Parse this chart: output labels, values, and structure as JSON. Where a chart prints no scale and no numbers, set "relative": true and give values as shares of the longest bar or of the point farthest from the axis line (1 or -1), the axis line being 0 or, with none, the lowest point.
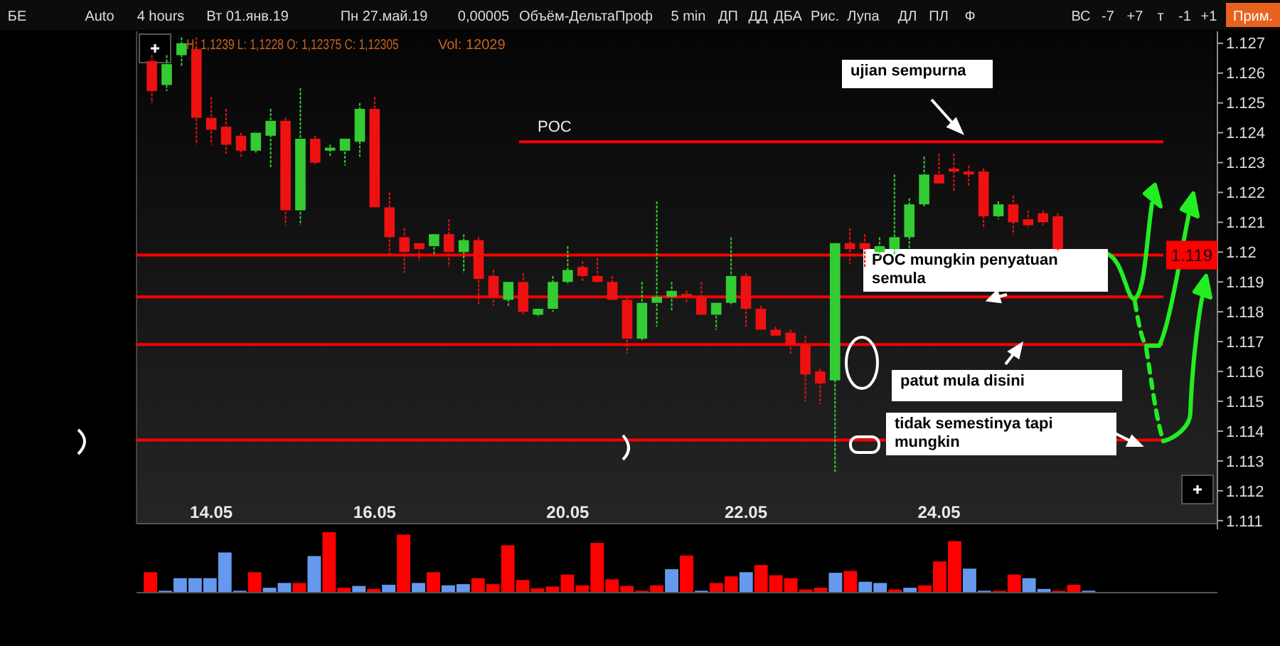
{
  "chart_data": [
    {
      "type": "candlestick",
      "categories": [
        null,
        null,
        null,
        null,
        "14.05",
        null,
        null,
        null,
        null,
        null,
        null,
        null,
        null,
        null,
        null,
        "16.05",
        null,
        null,
        null,
        null,
        null,
        null,
        null,
        null,
        null,
        null,
        null,
        null,
        "20.05",
        null,
        null,
        null,
        null,
        null,
        null,
        null,
        null,
        null,
        null,
        null,
        "22.05",
        null,
        null,
        null,
        null,
        null,
        null,
        null,
        null,
        null,
        null,
        null,
        null,
        "24.05",
        null,
        null,
        null,
        null,
        null,
        null,
        null,
        null,
        null,
        null,
        null,
        null,
        null,
        null,
        null,
        null,
        null,
        null
      ],
      "ohlc": [
        [
          1.1264,
          1.1266,
          1.125,
          1.1254
        ],
        [
          1.1256,
          1.1266,
          1.1254,
          1.1263
        ],
        [
          1.1266,
          1.1272,
          1.1262,
          1.127
        ],
        [
          1.1268,
          1.1272,
          1.1236,
          1.1245
        ],
        [
          1.1245,
          1.1252,
          1.1236,
          1.1241
        ],
        [
          1.1242,
          1.1248,
          1.1233,
          1.1236
        ],
        [
          1.1239,
          1.124,
          1.1232,
          1.1234
        ],
        [
          1.1234,
          1.124,
          1.1233,
          1.124
        ],
        [
          1.1239,
          1.1248,
          1.1228,
          1.1244
        ],
        [
          1.1244,
          1.1245,
          1.1209,
          1.1214
        ],
        [
          1.1214,
          1.1255,
          1.1209,
          1.1238
        ],
        [
          1.1238,
          1.1239,
          1.1229,
          1.123
        ],
        [
          1.1234,
          1.1236,
          1.1232,
          1.1235
        ],
        [
          1.1234,
          1.1238,
          1.1229,
          1.1238
        ],
        [
          1.1237,
          1.125,
          1.1232,
          1.1248
        ],
        [
          1.1248,
          1.1252,
          1.1215,
          1.1215
        ],
        [
          1.1215,
          1.122,
          1.1199,
          1.1205
        ],
        [
          1.1205,
          1.1208,
          1.1193,
          1.12
        ],
        [
          1.1203,
          1.1203,
          1.1197,
          1.1201
        ],
        [
          1.1202,
          1.1206,
          1.1199,
          1.1206
        ],
        [
          1.1206,
          1.1211,
          1.1195,
          1.12
        ],
        [
          1.12,
          1.1206,
          1.1193,
          1.1204
        ],
        [
          1.1204,
          1.1205,
          1.1182,
          1.1191
        ],
        [
          1.1192,
          1.1194,
          1.1182,
          1.1185
        ],
        [
          1.1184,
          1.119,
          1.1182,
          1.119
        ],
        [
          1.119,
          1.1193,
          1.1179,
          1.118
        ],
        [
          1.1179,
          1.1181,
          1.1178,
          1.1181
        ],
        [
          1.1181,
          1.1192,
          1.118,
          1.119
        ],
        [
          1.119,
          1.1202,
          1.1189,
          1.1194
        ],
        [
          1.1195,
          1.1197,
          1.119,
          1.1192
        ],
        [
          1.1192,
          1.1198,
          1.119,
          1.119
        ],
        [
          1.119,
          1.1192,
          1.1184,
          1.1184
        ],
        [
          1.1184,
          1.1185,
          1.1166,
          1.1171
        ],
        [
          1.1171,
          1.119,
          1.117,
          1.1183
        ],
        [
          1.1183,
          1.1217,
          1.1175,
          1.1185
        ],
        [
          1.1185,
          1.119,
          1.118,
          1.1187
        ],
        [
          1.1186,
          1.1187,
          1.1183,
          1.1185
        ],
        [
          1.1185,
          1.119,
          1.1179,
          1.1179
        ],
        [
          1.1179,
          1.1183,
          1.1174,
          1.1183
        ],
        [
          1.1183,
          1.1205,
          1.1182,
          1.1192
        ],
        [
          1.1192,
          1.1193,
          1.1175,
          1.1181
        ],
        [
          1.1181,
          1.1182,
          1.1174,
          1.1174
        ],
        [
          1.1174,
          1.1175,
          1.1172,
          1.1172
        ],
        [
          1.1173,
          1.1174,
          1.1166,
          1.1169
        ],
        [
          1.1169,
          1.1172,
          1.115,
          1.1159
        ],
        [
          1.116,
          1.1161,
          1.1149,
          1.1156
        ],
        [
          1.1157,
          1.1203,
          1.1126,
          1.1203
        ],
        [
          1.1203,
          1.1208,
          1.1196,
          1.1201
        ],
        [
          1.1203,
          1.1206,
          1.1195,
          1.1201
        ],
        [
          1.12,
          1.1205,
          1.1198,
          1.1202
        ],
        [
          1.1201,
          1.1226,
          1.1199,
          1.1205
        ],
        [
          1.1205,
          1.1218,
          1.1201,
          1.1216
        ],
        [
          1.1216,
          1.1232,
          1.1215,
          1.1226
        ],
        [
          1.1226,
          1.1233,
          1.1223,
          1.1223
        ],
        [
          1.1228,
          1.1233,
          1.122,
          1.1227
        ],
        [
          1.1227,
          1.1229,
          1.1222,
          1.1226
        ],
        [
          1.1227,
          1.1228,
          1.1208,
          1.1212
        ],
        [
          1.1212,
          1.1217,
          1.1211,
          1.1216
        ],
        [
          1.1216,
          1.1219,
          1.1206,
          1.121
        ],
        [
          1.1211,
          1.1214,
          1.1208,
          1.1209
        ],
        [
          1.1213,
          1.1214,
          1.1209,
          1.121
        ],
        [
          1.1212,
          1.1213,
          1.12,
          1.1201
        ],
        null,
        null,
        null,
        null,
        null,
        null,
        null,
        null,
        null,
        null
      ],
      "ylim": [
        1.1109,
        1.1274
      ],
      "yticks": [
        1.111,
        1.112,
        1.113,
        1.114,
        1.115,
        1.116,
        1.117,
        1.118,
        1.119,
        1.12,
        1.121,
        1.122,
        1.123,
        1.124,
        1.125,
        1.126,
        1.127
      ],
      "ref_lines": [
        {
          "axis": "y",
          "value": 1.1237,
          "label": "POC",
          "color": "#ff0000"
        },
        {
          "axis": "y",
          "value": 1.1199,
          "color": "#ff0000"
        },
        {
          "axis": "y",
          "value": 1.1185,
          "color": "#ff0000"
        },
        {
          "axis": "y",
          "value": 1.1169,
          "color": "#ff0000"
        },
        {
          "axis": "y",
          "value": 1.1137,
          "color": "#ff0000"
        }
      ],
      "annotations": [
        "H: 1,1239 L: 1,1228 O: 1,12375 C: 1,12305",
        "Vol: 12029",
        "ujian sempurna",
        "POC mungkin penyatuan semula",
        "patut mula disini",
        "tidak semestinya tapi mungkin",
        "БЕ",
        "Auto",
        "4 hours",
        "Вт 01.янв.19",
        "Пн 27.май.19",
        "0,00005",
        "Объём-ДельтаПроф",
        "5 min",
        "ДП",
        "ДД",
        "ДБА",
        "Рис.",
        "Лупа",
        "ДЛ",
        "ПЛ",
        "Ф",
        "ВС",
        "-7",
        "+7",
        "т",
        "-1",
        "+1",
        "Прим.",
        "1.119"
      ]
    },
    {
      "type": "bar",
      "relative": true,
      "categories": [
        null,
        null,
        null,
        null,
        null,
        null,
        null,
        null,
        null,
        null,
        null,
        null,
        null,
        null,
        null,
        null,
        null,
        null,
        null,
        null,
        null,
        null,
        null,
        null,
        null,
        null,
        null,
        null,
        null,
        null,
        null,
        null,
        null,
        null,
        null,
        null,
        null,
        null,
        null,
        null,
        null,
        null,
        null,
        null,
        null,
        null,
        null,
        null,
        null,
        null,
        null,
        null,
        null,
        null,
        null,
        null,
        null,
        null,
        null,
        null,
        null,
        null,
        null,
        null,
        null,
        null,
        null,
        null,
        null,
        null,
        null,
        null
      ],
      "values": [
        0.33,
        0.02,
        0.23,
        0.23,
        0.23,
        0.66,
        0.02,
        0.33,
        0.07,
        0.15,
        0.15,
        0.6,
        1,
        0.07,
        0.1,
        0.05,
        0.12,
        0.96,
        0.15,
        0.33,
        0.11,
        0.13,
        0.23,
        0.13,
        0.78,
        0.2,
        0.06,
        0.09,
        0.29,
        0.11,
        0.82,
        0.21,
        0.1,
        0.02,
        0.11,
        0.38,
        0.61,
        0.02,
        0.15,
        0.26,
        0.33,
        0.45,
        0.28,
        0.23,
        0.04,
        0.07,
        0.32,
        0.35,
        0.17,
        0.15,
        0.04,
        0.07,
        0.11,
        0.51,
        0.85,
        0.39,
        0.02,
        0.02,
        0.29,
        0.23,
        0.05,
        0.02,
        0.12,
        0.02,
        null,
        null,
        null,
        null,
        null,
        null,
        null,
        null
      ],
      "colors": [
        "#ff0000",
        "#6699ee",
        "#6699ee",
        "#6699ee",
        "#6699ee",
        "#6699ee",
        "#6699ee",
        "#ff0000",
        "#6699ee",
        "#6699ee",
        "#ff0000",
        "#6699ee",
        "#ff0000",
        "#ff0000",
        "#6699ee",
        "#ff0000",
        "#6699ee",
        "#ff0000",
        "#6699ee",
        "#ff0000",
        "#6699ee",
        "#6699ee",
        "#ff0000",
        "#ff0000",
        "#ff0000",
        "#ff0000",
        "#ff0000",
        "#ff0000",
        "#ff0000",
        "#ff0000",
        "#ff0000",
        "#ff0000",
        "#ff0000",
        "#ff0000",
        "#ff0000",
        "#6699ee",
        "#ff0000",
        "#6699ee",
        "#ff0000",
        "#ff0000",
        "#6699ee",
        "#ff0000",
        "#ff0000",
        "#ff0000",
        "#ff0000",
        "#ff0000",
        "#6699ee",
        "#ff0000",
        "#6699ee",
        "#6699ee",
        "#ff0000",
        "#6699ee",
        "#ff0000",
        "#ff0000",
        "#ff0000",
        "#6699ee",
        "#6699ee",
        "#ff0000",
        "#ff0000",
        "#6699ee",
        "#6699ee",
        "#ff0000",
        "#ff0000",
        "#6699ee",
        null,
        null,
        null,
        null,
        null,
        null,
        null,
        null
      ]
    }
  ]
}
